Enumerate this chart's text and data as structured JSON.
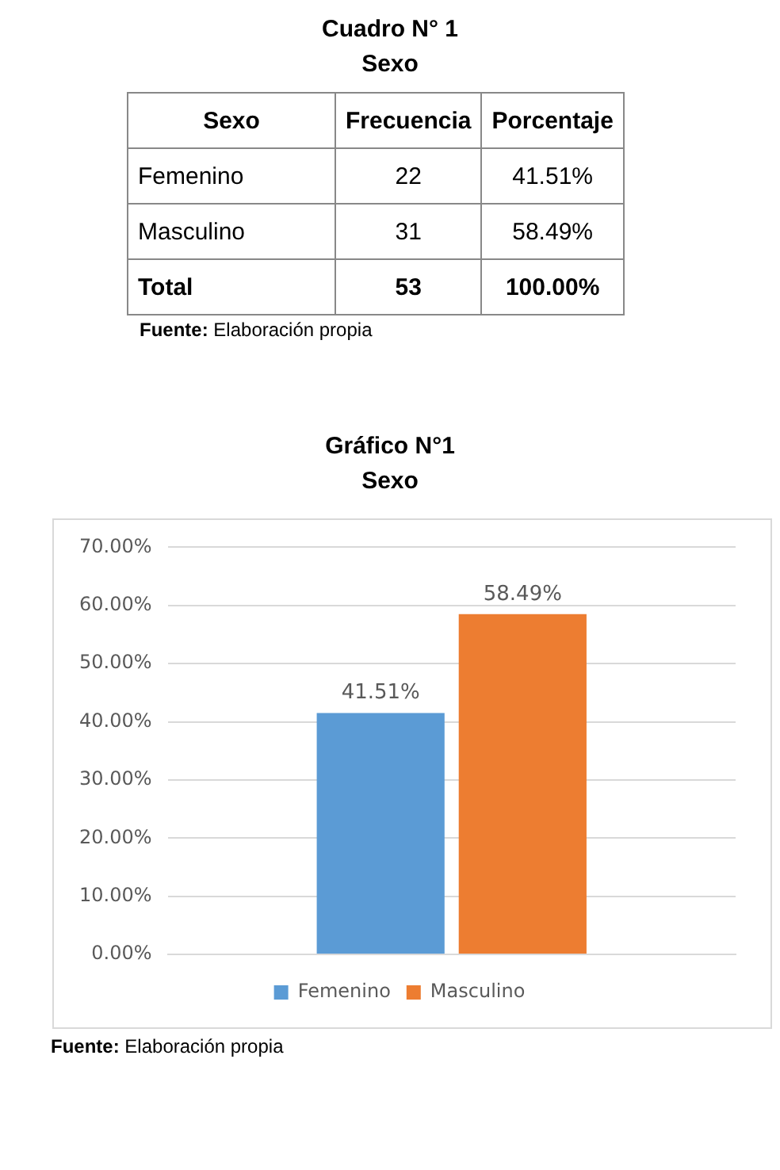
{
  "chart_data": [
    {
      "type": "heatmap",
      "title": "Cuadro N° 1",
      "subtitle": "Sexo",
      "ylabel": "Sexo",
      "categories": [
        "Frecuencia",
        "Porcentaje"
      ],
      "y_categories": [
        "Femenino",
        "Masculino",
        "Total"
      ],
      "cells": [
        [
          22,
          41.51
        ],
        [
          31,
          58.49
        ],
        [
          53,
          100
        ]
      ],
      "cell_labels": [
        [
          "22",
          "41.51%"
        ],
        [
          "31",
          "58.49%"
        ],
        [
          "53",
          "100.00%"
        ]
      ],
      "annotations": [
        "Fuente: Elaboración propia"
      ]
    },
    {
      "type": "bar",
      "title": "Gráfico N°1",
      "subtitle": "Sexo",
      "categories": [
        null
      ],
      "series": [
        {
          "name": "Femenino",
          "color": "#5b9bd5",
          "values": [
            41.51
          ],
          "value_labels": [
            "41.51%"
          ]
        },
        {
          "name": "Masculino",
          "color": "#ed7d31",
          "values": [
            58.49
          ],
          "value_labels": [
            "58.49%"
          ]
        }
      ],
      "ylim": [
        0,
        70
      ],
      "yticks": [
        {
          "value": 0,
          "label": "0.00%"
        },
        {
          "value": 10,
          "label": "10.00%"
        },
        {
          "value": 20,
          "label": "20.00%"
        },
        {
          "value": 30,
          "label": "30.00%"
        },
        {
          "value": 40,
          "label": "40.00%"
        },
        {
          "value": 50,
          "label": "50.00%"
        },
        {
          "value": 60,
          "label": "60.00%"
        },
        {
          "value": 70,
          "label": "70.00%"
        }
      ],
      "grid": "y",
      "legend": "bottom",
      "annotations": [
        "Fuente: Elaboración propia"
      ]
    }
  ]
}
